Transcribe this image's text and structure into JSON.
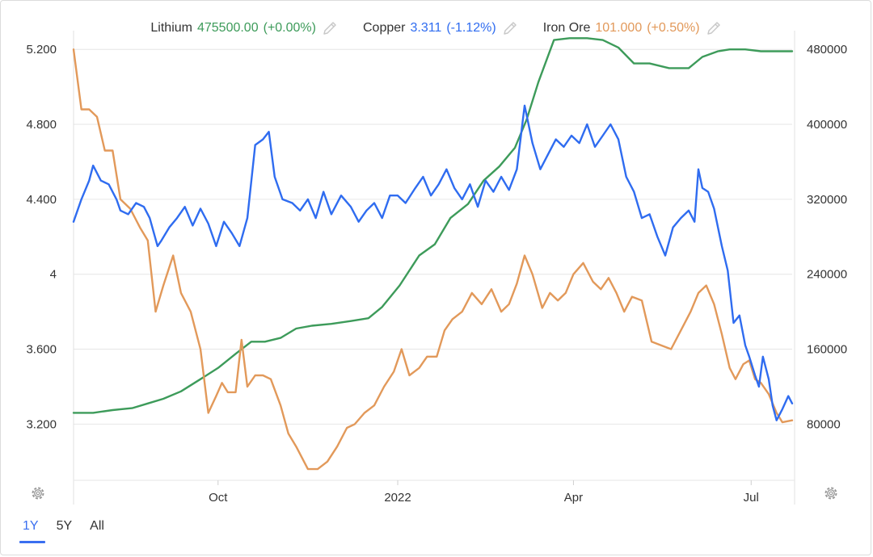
{
  "legend": [
    {
      "name": "Lithium",
      "value": "475500.00",
      "change": "(+0.00%)",
      "color": "#3d9b5a"
    },
    {
      "name": "Copper",
      "value": "3.311",
      "change": "(-1.12%)",
      "color": "#2f6cf0"
    },
    {
      "name": "Iron Ore",
      "value": "101.000",
      "change": "(+0.50%)",
      "color": "#e2995a"
    }
  ],
  "range_buttons": {
    "one_year": "1Y",
    "five_year": "5Y",
    "all": "All"
  },
  "colors": {
    "copper": "#2f6cf0",
    "lithium": "#3d9b5a",
    "iron_ore": "#e2995a",
    "grid": "#e6e6e6"
  },
  "icons": {
    "legend_edit": "pencil-icon",
    "settings": "gear-icon"
  },
  "chart_data": {
    "type": "line",
    "x_range": [
      "2021-07-19",
      "2022-07-22"
    ],
    "x_ticks": [
      {
        "date": "2021-10-01",
        "label": "Oct"
      },
      {
        "date": "2022-01-01",
        "label": "2022"
      },
      {
        "date": "2022-04-01",
        "label": "Apr"
      },
      {
        "date": "2022-07-01",
        "label": "Jul"
      }
    ],
    "y_left": {
      "range": [
        2.9,
        5.3
      ],
      "ticks": [
        {
          "v": 5.2,
          "label": "5.200"
        },
        {
          "v": 4.8,
          "label": "4.800"
        },
        {
          "v": 4.4,
          "label": "4.400"
        },
        {
          "v": 4.0,
          "label": "4"
        },
        {
          "v": 3.6,
          "label": "3.600"
        },
        {
          "v": 3.2,
          "label": "3.200"
        }
      ]
    },
    "y_right": {
      "range": [
        20000,
        500000
      ],
      "ticks": [
        {
          "v": 480000,
          "label": "480000"
        },
        {
          "v": 400000,
          "label": "400000"
        },
        {
          "v": 320000,
          "label": "320000"
        },
        {
          "v": 240000,
          "label": "240000"
        },
        {
          "v": 160000,
          "label": "160000"
        },
        {
          "v": 80000,
          "label": "80000"
        }
      ]
    },
    "series": [
      {
        "name": "Copper",
        "axis": "left",
        "points": [
          [
            "2021-07-19",
            4.28
          ],
          [
            "2021-07-23",
            4.4
          ],
          [
            "2021-07-27",
            4.5
          ],
          [
            "2021-07-29",
            4.58
          ],
          [
            "2021-08-02",
            4.5
          ],
          [
            "2021-08-06",
            4.48
          ],
          [
            "2021-08-10",
            4.4
          ],
          [
            "2021-08-12",
            4.34
          ],
          [
            "2021-08-16",
            4.32
          ],
          [
            "2021-08-20",
            4.38
          ],
          [
            "2021-08-24",
            4.36
          ],
          [
            "2021-08-27",
            4.3
          ],
          [
            "2021-08-31",
            4.15
          ],
          [
            "2021-09-02",
            4.18
          ],
          [
            "2021-09-06",
            4.25
          ],
          [
            "2021-09-10",
            4.3
          ],
          [
            "2021-09-14",
            4.36
          ],
          [
            "2021-09-18",
            4.26
          ],
          [
            "2021-09-22",
            4.35
          ],
          [
            "2021-09-26",
            4.27
          ],
          [
            "2021-09-30",
            4.15
          ],
          [
            "2021-10-04",
            4.28
          ],
          [
            "2021-10-08",
            4.22
          ],
          [
            "2021-10-12",
            4.15
          ],
          [
            "2021-10-16",
            4.3
          ],
          [
            "2021-10-20",
            4.69
          ],
          [
            "2021-10-24",
            4.72
          ],
          [
            "2021-10-27",
            4.76
          ],
          [
            "2021-10-30",
            4.52
          ],
          [
            "2021-11-03",
            4.4
          ],
          [
            "2021-11-08",
            4.38
          ],
          [
            "2021-11-12",
            4.34
          ],
          [
            "2021-11-16",
            4.4
          ],
          [
            "2021-11-20",
            4.3
          ],
          [
            "2021-11-24",
            4.44
          ],
          [
            "2021-11-28",
            4.32
          ],
          [
            "2021-12-03",
            4.42
          ],
          [
            "2021-12-08",
            4.36
          ],
          [
            "2021-12-12",
            4.28
          ],
          [
            "2021-12-16",
            4.34
          ],
          [
            "2021-12-20",
            4.38
          ],
          [
            "2021-12-24",
            4.3
          ],
          [
            "2021-12-28",
            4.42
          ],
          [
            "2022-01-01",
            4.42
          ],
          [
            "2022-01-05",
            4.38
          ],
          [
            "2022-01-10",
            4.46
          ],
          [
            "2022-01-14",
            4.52
          ],
          [
            "2022-01-18",
            4.42
          ],
          [
            "2022-01-22",
            4.48
          ],
          [
            "2022-01-26",
            4.56
          ],
          [
            "2022-01-30",
            4.46
          ],
          [
            "2022-02-03",
            4.4
          ],
          [
            "2022-02-07",
            4.48
          ],
          [
            "2022-02-11",
            4.36
          ],
          [
            "2022-02-15",
            4.5
          ],
          [
            "2022-02-19",
            4.44
          ],
          [
            "2022-02-23",
            4.52
          ],
          [
            "2022-02-27",
            4.45
          ],
          [
            "2022-03-03",
            4.56
          ],
          [
            "2022-03-07",
            4.9
          ],
          [
            "2022-03-11",
            4.7
          ],
          [
            "2022-03-15",
            4.56
          ],
          [
            "2022-03-19",
            4.64
          ],
          [
            "2022-03-23",
            4.72
          ],
          [
            "2022-03-27",
            4.68
          ],
          [
            "2022-03-31",
            4.74
          ],
          [
            "2022-04-04",
            4.7
          ],
          [
            "2022-04-08",
            4.8
          ],
          [
            "2022-04-12",
            4.68
          ],
          [
            "2022-04-16",
            4.74
          ],
          [
            "2022-04-20",
            4.8
          ],
          [
            "2022-04-24",
            4.72
          ],
          [
            "2022-04-28",
            4.52
          ],
          [
            "2022-05-02",
            4.44
          ],
          [
            "2022-05-06",
            4.3
          ],
          [
            "2022-05-10",
            4.32
          ],
          [
            "2022-05-14",
            4.2
          ],
          [
            "2022-05-18",
            4.1
          ],
          [
            "2022-05-22",
            4.25
          ],
          [
            "2022-05-26",
            4.3
          ],
          [
            "2022-05-30",
            4.34
          ],
          [
            "2022-06-02",
            4.28
          ],
          [
            "2022-06-04",
            4.56
          ],
          [
            "2022-06-06",
            4.46
          ],
          [
            "2022-06-09",
            4.44
          ],
          [
            "2022-06-12",
            4.35
          ],
          [
            "2022-06-16",
            4.15
          ],
          [
            "2022-06-19",
            4.02
          ],
          [
            "2022-06-22",
            3.74
          ],
          [
            "2022-06-25",
            3.78
          ],
          [
            "2022-06-28",
            3.62
          ],
          [
            "2022-06-30",
            3.56
          ],
          [
            "2022-07-03",
            3.46
          ],
          [
            "2022-07-05",
            3.4
          ],
          [
            "2022-07-07",
            3.56
          ],
          [
            "2022-07-10",
            3.44
          ],
          [
            "2022-07-12",
            3.3
          ],
          [
            "2022-07-14",
            3.22
          ],
          [
            "2022-07-17",
            3.28
          ],
          [
            "2022-07-20",
            3.35
          ],
          [
            "2022-07-22",
            3.31
          ]
        ]
      },
      {
        "name": "Lithium",
        "axis": "right",
        "points": [
          [
            "2021-07-19",
            92000
          ],
          [
            "2021-07-29",
            92000
          ],
          [
            "2021-08-08",
            95000
          ],
          [
            "2021-08-18",
            97000
          ],
          [
            "2021-08-26",
            102000
          ],
          [
            "2021-09-03",
            107000
          ],
          [
            "2021-09-12",
            115000
          ],
          [
            "2021-09-22",
            128000
          ],
          [
            "2021-10-01",
            140000
          ],
          [
            "2021-10-10",
            155000
          ],
          [
            "2021-10-18",
            168000
          ],
          [
            "2021-10-25",
            168000
          ],
          [
            "2021-11-02",
            172000
          ],
          [
            "2021-11-10",
            182000
          ],
          [
            "2021-11-18",
            185000
          ],
          [
            "2021-11-28",
            187000
          ],
          [
            "2021-12-08",
            190000
          ],
          [
            "2021-12-17",
            193000
          ],
          [
            "2021-12-24",
            205000
          ],
          [
            "2022-01-02",
            228000
          ],
          [
            "2022-01-12",
            260000
          ],
          [
            "2022-01-20",
            272000
          ],
          [
            "2022-01-28",
            300000
          ],
          [
            "2022-02-06",
            315000
          ],
          [
            "2022-02-14",
            340000
          ],
          [
            "2022-02-22",
            355000
          ],
          [
            "2022-03-02",
            375000
          ],
          [
            "2022-03-08",
            405000
          ],
          [
            "2022-03-14",
            445000
          ],
          [
            "2022-03-22",
            490000
          ],
          [
            "2022-03-30",
            492000
          ],
          [
            "2022-04-08",
            492000
          ],
          [
            "2022-04-16",
            490000
          ],
          [
            "2022-04-24",
            482000
          ],
          [
            "2022-05-02",
            465000
          ],
          [
            "2022-05-10",
            465000
          ],
          [
            "2022-05-20",
            460000
          ],
          [
            "2022-05-30",
            460000
          ],
          [
            "2022-06-06",
            472000
          ],
          [
            "2022-06-14",
            478000
          ],
          [
            "2022-06-20",
            480000
          ],
          [
            "2022-06-28",
            480000
          ],
          [
            "2022-07-06",
            478000
          ],
          [
            "2022-07-22",
            478000
          ]
        ]
      },
      {
        "name": "Iron Ore",
        "axis": "left",
        "points": [
          [
            "2021-07-19",
            5.2
          ],
          [
            "2021-07-23",
            4.88
          ],
          [
            "2021-07-27",
            4.88
          ],
          [
            "2021-07-31",
            4.84
          ],
          [
            "2021-08-04",
            4.66
          ],
          [
            "2021-08-08",
            4.66
          ],
          [
            "2021-08-12",
            4.4
          ],
          [
            "2021-08-17",
            4.35
          ],
          [
            "2021-08-22",
            4.25
          ],
          [
            "2021-08-26",
            4.18
          ],
          [
            "2021-08-30",
            3.8
          ],
          [
            "2021-09-03",
            3.94
          ],
          [
            "2021-09-08",
            4.1
          ],
          [
            "2021-09-12",
            3.9
          ],
          [
            "2021-09-17",
            3.8
          ],
          [
            "2021-09-22",
            3.6
          ],
          [
            "2021-09-26",
            3.26
          ],
          [
            "2021-09-30",
            3.35
          ],
          [
            "2021-10-03",
            3.42
          ],
          [
            "2021-10-06",
            3.37
          ],
          [
            "2021-10-10",
            3.37
          ],
          [
            "2021-10-13",
            3.65
          ],
          [
            "2021-10-16",
            3.4
          ],
          [
            "2021-10-20",
            3.46
          ],
          [
            "2021-10-24",
            3.46
          ],
          [
            "2021-10-28",
            3.44
          ],
          [
            "2021-11-02",
            3.3
          ],
          [
            "2021-11-06",
            3.15
          ],
          [
            "2021-11-10",
            3.08
          ],
          [
            "2021-11-16",
            2.96
          ],
          [
            "2021-11-21",
            2.96
          ],
          [
            "2021-11-26",
            3.0
          ],
          [
            "2021-12-01",
            3.08
          ],
          [
            "2021-12-06",
            3.18
          ],
          [
            "2021-12-10",
            3.2
          ],
          [
            "2021-12-15",
            3.26
          ],
          [
            "2021-12-20",
            3.3
          ],
          [
            "2021-12-25",
            3.4
          ],
          [
            "2021-12-30",
            3.48
          ],
          [
            "2022-01-03",
            3.6
          ],
          [
            "2022-01-07",
            3.46
          ],
          [
            "2022-01-12",
            3.5
          ],
          [
            "2022-01-16",
            3.56
          ],
          [
            "2022-01-21",
            3.56
          ],
          [
            "2022-01-25",
            3.7
          ],
          [
            "2022-01-29",
            3.76
          ],
          [
            "2022-02-03",
            3.8
          ],
          [
            "2022-02-08",
            3.9
          ],
          [
            "2022-02-13",
            3.84
          ],
          [
            "2022-02-18",
            3.92
          ],
          [
            "2022-02-23",
            3.8
          ],
          [
            "2022-02-27",
            3.84
          ],
          [
            "2022-03-03",
            3.95
          ],
          [
            "2022-03-07",
            4.1
          ],
          [
            "2022-03-11",
            4.0
          ],
          [
            "2022-03-16",
            3.82
          ],
          [
            "2022-03-20",
            3.9
          ],
          [
            "2022-03-24",
            3.86
          ],
          [
            "2022-03-28",
            3.9
          ],
          [
            "2022-04-01",
            4.0
          ],
          [
            "2022-04-06",
            4.06
          ],
          [
            "2022-04-11",
            3.96
          ],
          [
            "2022-04-15",
            3.92
          ],
          [
            "2022-04-19",
            3.98
          ],
          [
            "2022-04-23",
            3.9
          ],
          [
            "2022-04-27",
            3.8
          ],
          [
            "2022-05-01",
            3.88
          ],
          [
            "2022-05-06",
            3.86
          ],
          [
            "2022-05-11",
            3.64
          ],
          [
            "2022-05-16",
            3.62
          ],
          [
            "2022-05-21",
            3.6
          ],
          [
            "2022-05-26",
            3.7
          ],
          [
            "2022-05-31",
            3.8
          ],
          [
            "2022-06-04",
            3.9
          ],
          [
            "2022-06-08",
            3.94
          ],
          [
            "2022-06-12",
            3.84
          ],
          [
            "2022-06-16",
            3.68
          ],
          [
            "2022-06-20",
            3.5
          ],
          [
            "2022-06-23",
            3.44
          ],
          [
            "2022-06-27",
            3.52
          ],
          [
            "2022-06-30",
            3.54
          ],
          [
            "2022-07-03",
            3.44
          ],
          [
            "2022-07-06",
            3.42
          ],
          [
            "2022-07-10",
            3.36
          ],
          [
            "2022-07-14",
            3.26
          ],
          [
            "2022-07-17",
            3.21
          ],
          [
            "2022-07-22",
            3.22
          ]
        ]
      }
    ]
  }
}
